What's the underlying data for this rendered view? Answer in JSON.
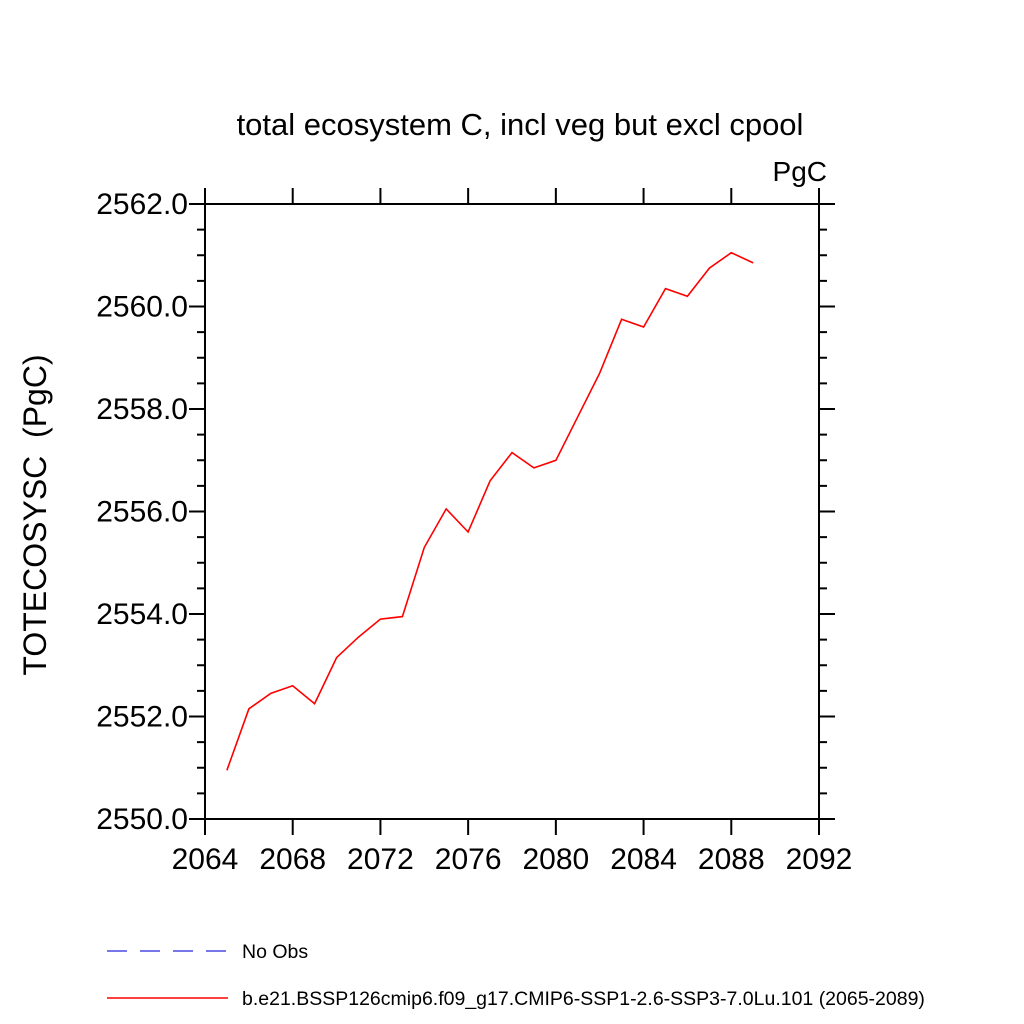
{
  "chart_data": {
    "type": "line",
    "title": "total ecosystem C, incl veg but excl cpool",
    "unit_label": "PgC",
    "ylabel": "TOTECOSYSC  (PgC)",
    "xlabel": "",
    "xlim": [
      2064,
      2092
    ],
    "ylim": [
      2550.0,
      2562.0
    ],
    "x_major_ticks": [
      2064,
      2068,
      2072,
      2076,
      2080,
      2084,
      2088,
      2092
    ],
    "x_tick_labels": [
      "2064",
      "2068",
      "2072",
      "2076",
      "2080",
      "2084",
      "2088",
      "2092"
    ],
    "y_major_ticks": [
      2550.0,
      2552.0,
      2554.0,
      2556.0,
      2558.0,
      2560.0,
      2562.0
    ],
    "y_tick_labels": [
      "2550.0",
      "2552.0",
      "2554.0",
      "2556.0",
      "2558.0",
      "2560.0",
      "2562.0"
    ],
    "y_minor_step": 0.5,
    "grid": false,
    "legend_position": "bottom-left",
    "series": [
      {
        "name": "b.e21.BSSP126cmip6.f09_g17.CMIP6-SSP1-2.6-SSP3-7.0Lu.101 (2065-2089)",
        "color": "#ff0000",
        "style": "solid",
        "x": [
          2065,
          2066,
          2067,
          2068,
          2069,
          2070,
          2071,
          2072,
          2073,
          2074,
          2075,
          2076,
          2077,
          2078,
          2079,
          2080,
          2081,
          2082,
          2083,
          2084,
          2085,
          2086,
          2087,
          2088,
          2089
        ],
        "values": [
          2550.95,
          2552.15,
          2552.45,
          2552.6,
          2552.25,
          2553.15,
          2553.55,
          2553.9,
          2553.95,
          2555.3,
          2556.05,
          2555.6,
          2556.6,
          2557.15,
          2556.85,
          2557.0,
          2557.85,
          2558.7,
          2559.75,
          2559.6,
          2560.35,
          2560.2,
          2560.75,
          2561.05,
          2560.85
        ]
      }
    ],
    "legend": [
      {
        "label": "No Obs",
        "color": "#7777e8",
        "style": "dashed"
      },
      {
        "label": "b.e21.BSSP126cmip6.f09_g17.CMIP6-SSP1-2.6-SSP3-7.0Lu.101 (2065-2089)",
        "color": "#ff0000",
        "style": "solid"
      }
    ]
  }
}
